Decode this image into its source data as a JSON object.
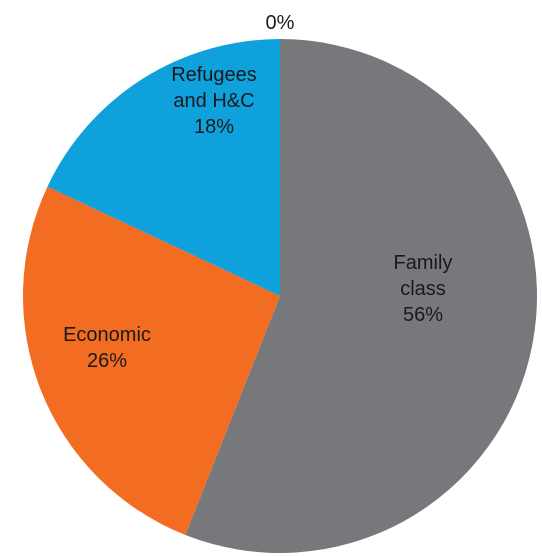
{
  "chart_data": {
    "type": "pie",
    "title": "",
    "start_angle_deg": 0,
    "direction": "clockwise",
    "slices": [
      {
        "label_lines": [
          "Family",
          "class"
        ],
        "value_text": "56%",
        "value": 56,
        "color": "#77787b"
      },
      {
        "label_lines": [
          "Economic"
        ],
        "value_text": "26%",
        "value": 26,
        "color": "#f26c21"
      },
      {
        "label_lines": [
          "Refugees",
          "and H&C"
        ],
        "value_text": "18%",
        "value": 18,
        "color": "#0ea1dc"
      },
      {
        "label_lines": [],
        "value_text": "0%",
        "value": 0,
        "color": "#cccccc"
      }
    ]
  }
}
